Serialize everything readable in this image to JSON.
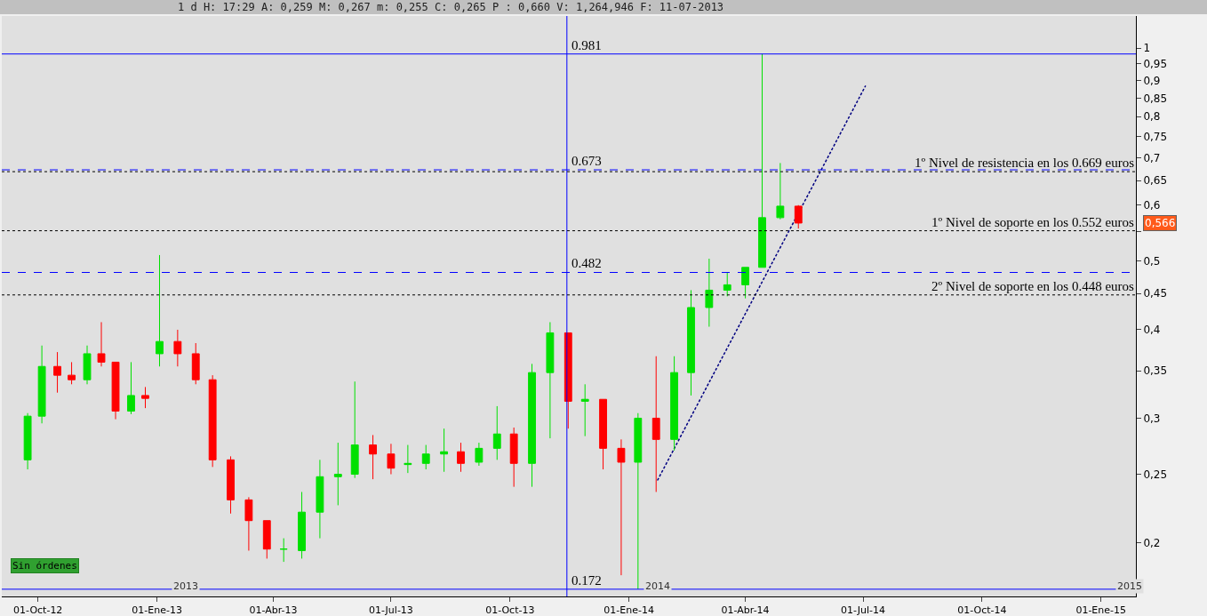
{
  "chart_data": {
    "type": "candlestick",
    "subtitle": "1 d H: 17:29 A: 0,259 M: 0,267 m: 0,255 C: 0,265 P : 0,660 V: 1,264,946 F: 11-07-2013",
    "log": "y",
    "grid": false,
    "xlim": [
      "2012-09-03",
      "2015-01-28"
    ],
    "xticks": [
      {
        "value": "2012-10-01",
        "label": "01-Oct-12"
      },
      {
        "value": "2013-01-01",
        "label": "01-Ene-13"
      },
      {
        "value": "2013-04-01",
        "label": "01-Abr-13"
      },
      {
        "value": "2013-07-01",
        "label": "01-Jul-13"
      },
      {
        "value": "2013-10-01",
        "label": "01-Oct-13"
      },
      {
        "value": "2014-01-01",
        "label": "01-Ene-14"
      },
      {
        "value": "2014-04-01",
        "label": "01-Abr-14"
      },
      {
        "value": "2014-07-01",
        "label": "01-Jul-14"
      },
      {
        "value": "2014-10-01",
        "label": "01-Oct-14"
      },
      {
        "value": "2015-01-01",
        "label": "01-Ene-15"
      }
    ],
    "ylim": [
      0.168,
      1.11
    ],
    "yticks": [
      {
        "value": 0.2,
        "label": "0,2"
      },
      {
        "value": 0.25,
        "label": "0,25"
      },
      {
        "value": 0.3,
        "label": "0,3"
      },
      {
        "value": 0.35,
        "label": "0,35"
      },
      {
        "value": 0.4,
        "label": "0,4"
      },
      {
        "value": 0.45,
        "label": "0,45"
      },
      {
        "value": 0.5,
        "label": "0,5"
      },
      {
        "value": 0.55,
        "label": null
      },
      {
        "value": 0.6,
        "label": "0,6"
      },
      {
        "value": 0.65,
        "label": "0,65"
      },
      {
        "value": 0.7,
        "label": "0,7"
      },
      {
        "value": 0.75,
        "label": "0,75"
      },
      {
        "value": 0.8,
        "label": "0,8"
      },
      {
        "value": 0.85,
        "label": "0,85"
      },
      {
        "value": 0.9,
        "label": "0,9"
      },
      {
        "value": 0.95,
        "label": "0,95"
      },
      {
        "value": 1,
        "label": "1"
      }
    ],
    "series": [
      {
        "x": [
          "2012-09-23",
          "2012-10-04",
          "2012-10-16",
          "2012-10-27",
          "2012-11-08",
          "2012-11-19",
          "2012-11-30",
          "2012-12-12",
          "2012-12-23",
          "2013-01-03",
          "2013-01-17",
          "2013-01-31",
          "2013-02-13",
          "2013-02-27",
          "2013-03-13",
          "2013-03-27",
          "2013-04-09",
          "2013-04-23",
          "2013-05-07",
          "2013-05-21",
          "2013-06-03",
          "2013-06-17",
          "2013-07-01",
          "2013-07-14",
          "2013-07-28",
          "2013-08-11",
          "2013-08-24",
          "2013-09-07",
          "2013-09-21",
          "2013-10-04",
          "2013-10-18",
          "2013-11-01",
          "2013-11-15",
          "2013-11-28",
          "2013-12-12",
          "2013-12-26",
          "2014-01-08",
          "2014-01-22",
          "2014-02-05",
          "2014-02-18",
          "2014-03-04",
          "2014-03-18",
          "2014-04-01",
          "2014-04-14",
          "2014-04-28",
          "2014-05-12"
        ],
        "ohlc": [
          [
            0.262,
            0.305,
            0.254,
            0.302
          ],
          [
            0.302,
            0.38,
            0.295,
            0.355
          ],
          [
            0.355,
            0.372,
            0.326,
            0.345
          ],
          [
            0.345,
            0.36,
            0.335,
            0.34
          ],
          [
            0.34,
            0.38,
            0.335,
            0.37
          ],
          [
            0.37,
            0.41,
            0.355,
            0.36
          ],
          [
            0.36,
            0.36,
            0.299,
            0.307
          ],
          [
            0.307,
            0.36,
            0.304,
            0.323
          ],
          [
            0.323,
            0.332,
            0.31,
            0.32
          ],
          [
            0.37,
            0.51,
            0.355,
            0.385
          ],
          [
            0.385,
            0.4,
            0.355,
            0.37
          ],
          [
            0.37,
            0.383,
            0.335,
            0.34
          ],
          [
            0.34,
            0.345,
            0.256,
            0.262
          ],
          [
            0.262,
            0.265,
            0.22,
            0.23
          ],
          [
            0.23,
            0.232,
            0.195,
            0.215
          ],
          [
            0.215,
            0.215,
            0.19,
            0.196
          ],
          [
            0.196,
            0.203,
            0.188,
            0.196
          ],
          [
            0.195,
            0.236,
            0.19,
            0.221
          ],
          [
            0.221,
            0.262,
            0.203,
            0.248
          ],
          [
            0.248,
            0.277,
            0.226,
            0.25
          ],
          [
            0.25,
            0.338,
            0.247,
            0.275
          ],
          [
            0.275,
            0.284,
            0.246,
            0.267
          ],
          [
            0.267,
            0.276,
            0.25,
            0.255
          ],
          [
            0.258,
            0.275,
            0.251,
            0.259
          ],
          [
            0.259,
            0.275,
            0.254,
            0.267
          ],
          [
            0.267,
            0.29,
            0.252,
            0.269
          ],
          [
            0.269,
            0.277,
            0.252,
            0.259
          ],
          [
            0.26,
            0.277,
            0.257,
            0.272
          ],
          [
            0.272,
            0.312,
            0.262,
            0.285
          ],
          [
            0.285,
            0.291,
            0.24,
            0.259
          ],
          [
            0.259,
            0.358,
            0.24,
            0.348
          ],
          [
            0.348,
            0.41,
            0.281,
            0.396
          ],
          [
            0.396,
            0.396,
            0.29,
            0.317
          ],
          [
            0.317,
            0.335,
            0.283,
            0.319
          ],
          [
            0.319,
            0.319,
            0.254,
            0.272
          ],
          [
            0.272,
            0.28,
            0.18,
            0.26
          ],
          [
            0.26,
            0.305,
            0.172,
            0.3
          ],
          [
            0.3,
            0.367,
            0.236,
            0.28
          ],
          [
            0.28,
            0.367,
            0.27,
            0.348
          ],
          [
            0.348,
            0.455,
            0.323,
            0.43
          ],
          [
            0.43,
            0.504,
            0.404,
            0.455
          ],
          [
            0.455,
            0.482,
            0.446,
            0.463
          ],
          [
            0.463,
            0.49,
            0.443,
            0.49
          ],
          [
            0.49,
            0.981,
            0.49,
            0.576
          ],
          [
            0.576,
            0.688,
            0.573,
            0.598
          ],
          [
            0.598,
            0.6,
            0.556,
            0.566
          ]
        ],
        "colors": [
          "#00e000",
          "#00e000",
          "#ff0000",
          "#ff0000",
          "#00e000",
          "#ff0000",
          "#ff0000",
          "#00e000",
          "#ff0000",
          "#00e000",
          "#ff0000",
          "#ff0000",
          "#ff0000",
          "#ff0000",
          "#ff0000",
          "#ff0000",
          "#00e000",
          "#00e000",
          "#00e000",
          "#00e000",
          "#00e000",
          "#ff0000",
          "#ff0000",
          "#00e000",
          "#00e000",
          "#00e000",
          "#ff0000",
          "#00e000",
          "#00e000",
          "#ff0000",
          "#00e000",
          "#00e000",
          "#ff0000",
          "#00e000",
          "#ff0000",
          "#ff0000",
          "#00e000",
          "#ff0000",
          "#00e000",
          "#00e000",
          "#00e000",
          "#00e000",
          "#00e000",
          "#00e000",
          "#00e000",
          "#ff0000"
        ]
      },
      {
        "type": "line",
        "x": [
          "2014-01-23",
          "2014-07-03"
        ],
        "values": [
          0.245,
          0.885
        ],
        "color": "#000080",
        "line_style": "dashed"
      }
    ],
    "ref_lines": [
      {
        "axis": "y",
        "value": 0.981,
        "color": "#0000ff",
        "line_style": "solid"
      },
      {
        "axis": "y",
        "value": 0.673,
        "color": "#0000ff",
        "line_style": "dashed"
      },
      {
        "axis": "y",
        "value": 0.482,
        "color": "#0000ff",
        "line_style": "dashed"
      },
      {
        "axis": "y",
        "value": 0.172,
        "color": "#0000ff",
        "line_style": "solid"
      },
      {
        "axis": "x",
        "value": "2013-11-14",
        "color": "#0000ff",
        "line_style": "solid"
      },
      {
        "axis": "y",
        "value": 0.669,
        "label": "1º Nivel de resistencia en los 0.669 euros",
        "color": "#000000",
        "line_style": "dotted"
      },
      {
        "axis": "y",
        "value": 0.552,
        "label": "1º Nivel de soporte en los 0.552 euros",
        "color": "#000000",
        "line_style": "dotted"
      },
      {
        "axis": "y",
        "value": 0.448,
        "label": "2º Nivel de soporte en los 0.448 euros",
        "color": "#000000",
        "line_style": "dotted"
      }
    ],
    "annotations": [
      {
        "text": "0.981",
        "x": "2013-11-14",
        "y": 0.981
      },
      {
        "text": "0.673",
        "x": "2013-11-14",
        "y": 0.673
      },
      {
        "text": "0.482",
        "x": "2013-11-14",
        "y": 0.482
      },
      {
        "text": "0.172",
        "x": "2013-11-14",
        "y": 0.172
      },
      "2013",
      "2014",
      "2015",
      "0,566",
      "Sin órdenes"
    ]
  }
}
